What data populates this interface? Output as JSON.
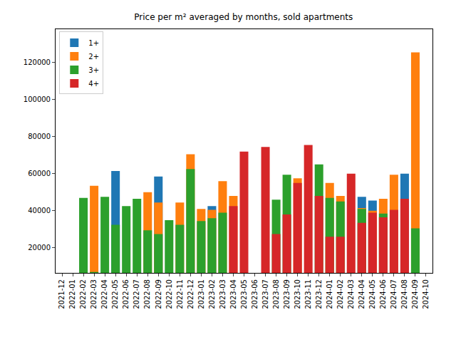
{
  "chart_data": {
    "type": "bar",
    "title": "Price per m² averaged by months, sold apartments",
    "stacked": false,
    "grid": false,
    "legend": "upper left",
    "categories": [
      "2021-12",
      "2022-01",
      "2022-02",
      "2022-03",
      "2022-04",
      "2022-05",
      "2022-06",
      "2022-07",
      "2022-08",
      "2022-09",
      "2022-10",
      "2022-11",
      "2022-12",
      "2023-01",
      "2023-02",
      "2023-03",
      "2023-04",
      "2023-05",
      "2023-06",
      "2023-07",
      "2023-08",
      "2023-09",
      "2023-10",
      "2023-11",
      "2023-12",
      "2024-01",
      "2024-02",
      "2024-03",
      "2024-04",
      "2024-05",
      "2024-06",
      "2024-07",
      "2024-08",
      "2024-09",
      "2024-10"
    ],
    "series": [
      {
        "name": "1+",
        "color": "#1f77b4",
        "values": [
          null,
          null,
          null,
          null,
          null,
          61500,
          null,
          null,
          null,
          58500,
          null,
          null,
          null,
          null,
          42500,
          null,
          null,
          null,
          null,
          null,
          null,
          null,
          null,
          null,
          null,
          null,
          null,
          null,
          47500,
          45500,
          null,
          null,
          60000,
          null,
          null
        ]
      },
      {
        "name": "2+",
        "color": "#ff7f0e",
        "values": [
          null,
          null,
          null,
          53500,
          null,
          null,
          null,
          null,
          50000,
          44500,
          null,
          44500,
          70500,
          41000,
          40500,
          56000,
          48000,
          null,
          null,
          null,
          null,
          null,
          57500,
          null,
          null,
          55000,
          48000,
          null,
          41500,
          40000,
          46500,
          59500,
          null,
          125500,
          null
        ]
      },
      {
        "name": "3+",
        "color": "#2ca02c",
        "values": [
          null,
          null,
          47000,
          7000,
          47500,
          32500,
          42500,
          46500,
          29500,
          27500,
          35000,
          32500,
          62500,
          34500,
          36000,
          39000,
          null,
          null,
          null,
          null,
          46000,
          59500,
          null,
          null,
          65000,
          47000,
          45000,
          null,
          41000,
          null,
          38500,
          null,
          null,
          30500,
          null
        ]
      },
      {
        "name": "4+",
        "color": "#d62728",
        "values": [
          null,
          null,
          null,
          null,
          null,
          null,
          null,
          null,
          null,
          null,
          null,
          null,
          null,
          null,
          null,
          null,
          42500,
          72000,
          null,
          74500,
          27500,
          38000,
          55000,
          75500,
          48000,
          26000,
          26000,
          60000,
          33500,
          39000,
          36500,
          40500,
          46500,
          null,
          null
        ]
      }
    ],
    "ylim": [
      6500,
      138000
    ],
    "yticks": [
      20000,
      40000,
      60000,
      80000,
      100000,
      120000
    ]
  }
}
